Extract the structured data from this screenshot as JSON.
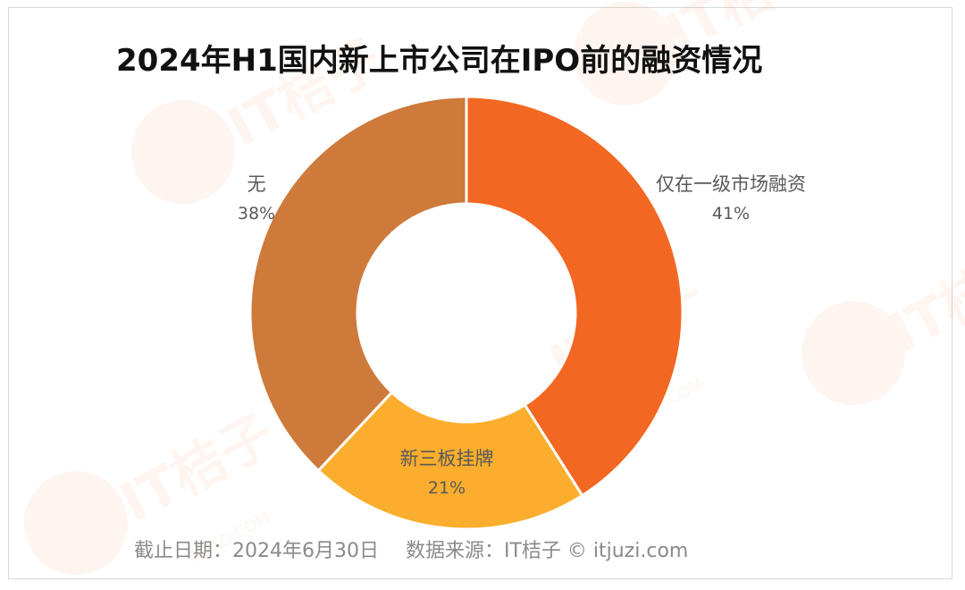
{
  "title": "2024年H1国内新上市公司在IPO前的融资情况",
  "footer": {
    "date": "截止日期：2024年6月30日",
    "source": "数据来源：IT桔子 © itjuzi.com"
  },
  "watermark": {
    "brand": "IT桔子",
    "site": "ITJUZI.COM"
  },
  "chart_data": {
    "type": "pie",
    "variant": "donut",
    "title": "2024年H1国内新上市公司在IPO前的融资情况",
    "slices": [
      {
        "label": "仅在一级市场融资",
        "value": 41,
        "pct_label": "41%",
        "color": "#F26722"
      },
      {
        "label": "新三板挂牌",
        "value": 21,
        "pct_label": "21%",
        "color": "#FBAE2D"
      },
      {
        "label": "无",
        "value": 38,
        "pct_label": "38%",
        "color": "#CD7A3B"
      }
    ]
  }
}
